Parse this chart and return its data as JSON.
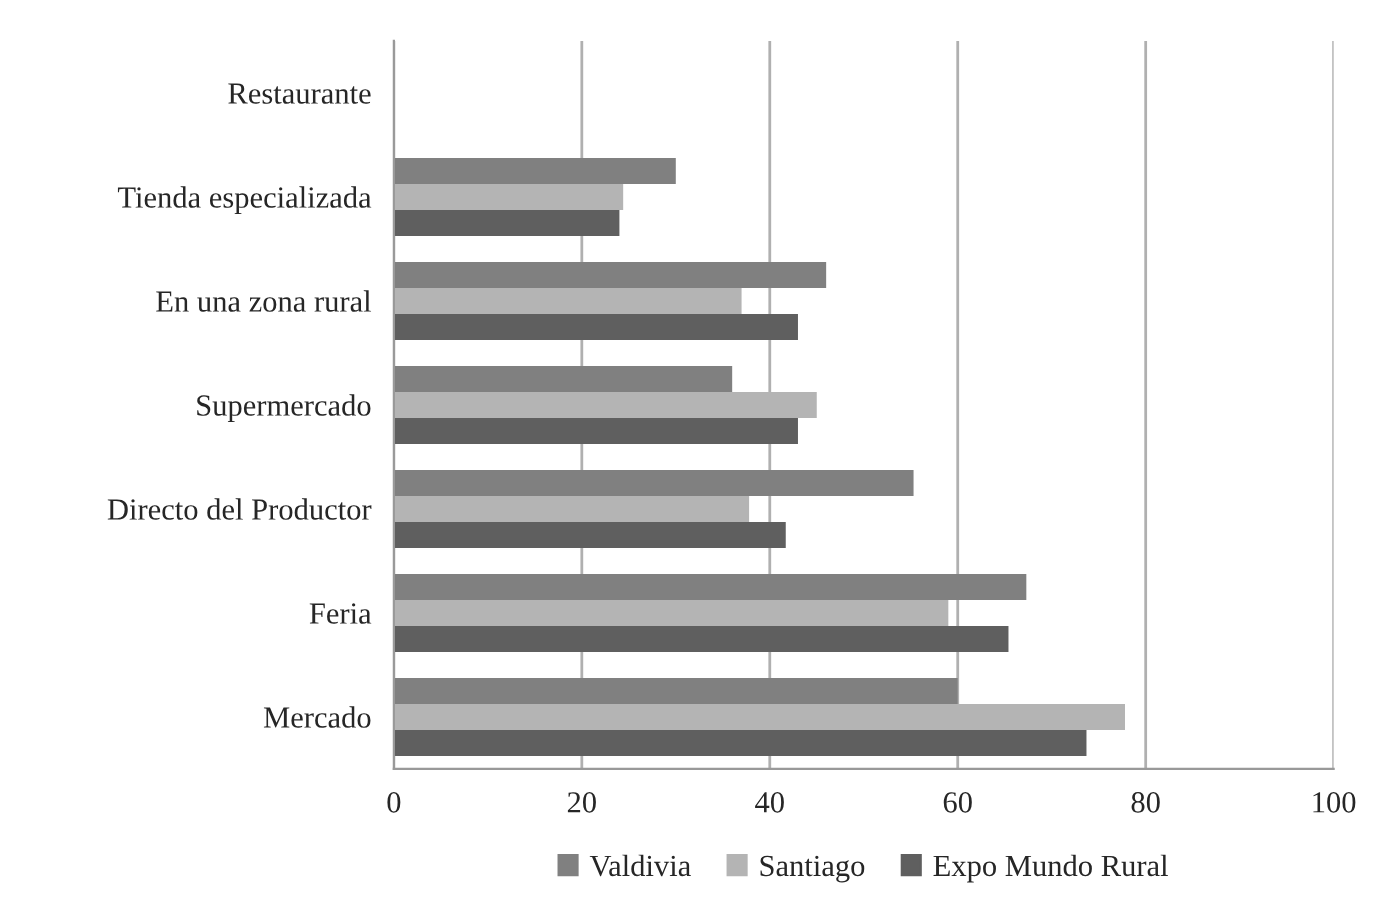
{
  "chart_data": {
    "type": "bar",
    "orientation": "horizontal",
    "categories": [
      "Restaurante",
      "Tienda especializada",
      "En una zona rural",
      "Supermercado",
      "Directo del Productor",
      "Feria",
      "Mercado"
    ],
    "series": [
      {
        "name": "Valdivia",
        "color": "#808080",
        "values": [
          0,
          30,
          46,
          36,
          55.3,
          67.3,
          60
        ]
      },
      {
        "name": "Santiago",
        "color": "#b4b4b4",
        "values": [
          0,
          24.4,
          37,
          45,
          37.8,
          59,
          77.8
        ]
      },
      {
        "name": "Expo Mundo Rural",
        "color": "#5f5f5f",
        "values": [
          0,
          24,
          43,
          43,
          41.7,
          65.4,
          73.7
        ]
      }
    ],
    "xlim": [
      0,
      100
    ],
    "xticks": [
      0,
      20,
      40,
      60,
      80,
      100
    ],
    "grid": "x",
    "legend": "bottom"
  }
}
